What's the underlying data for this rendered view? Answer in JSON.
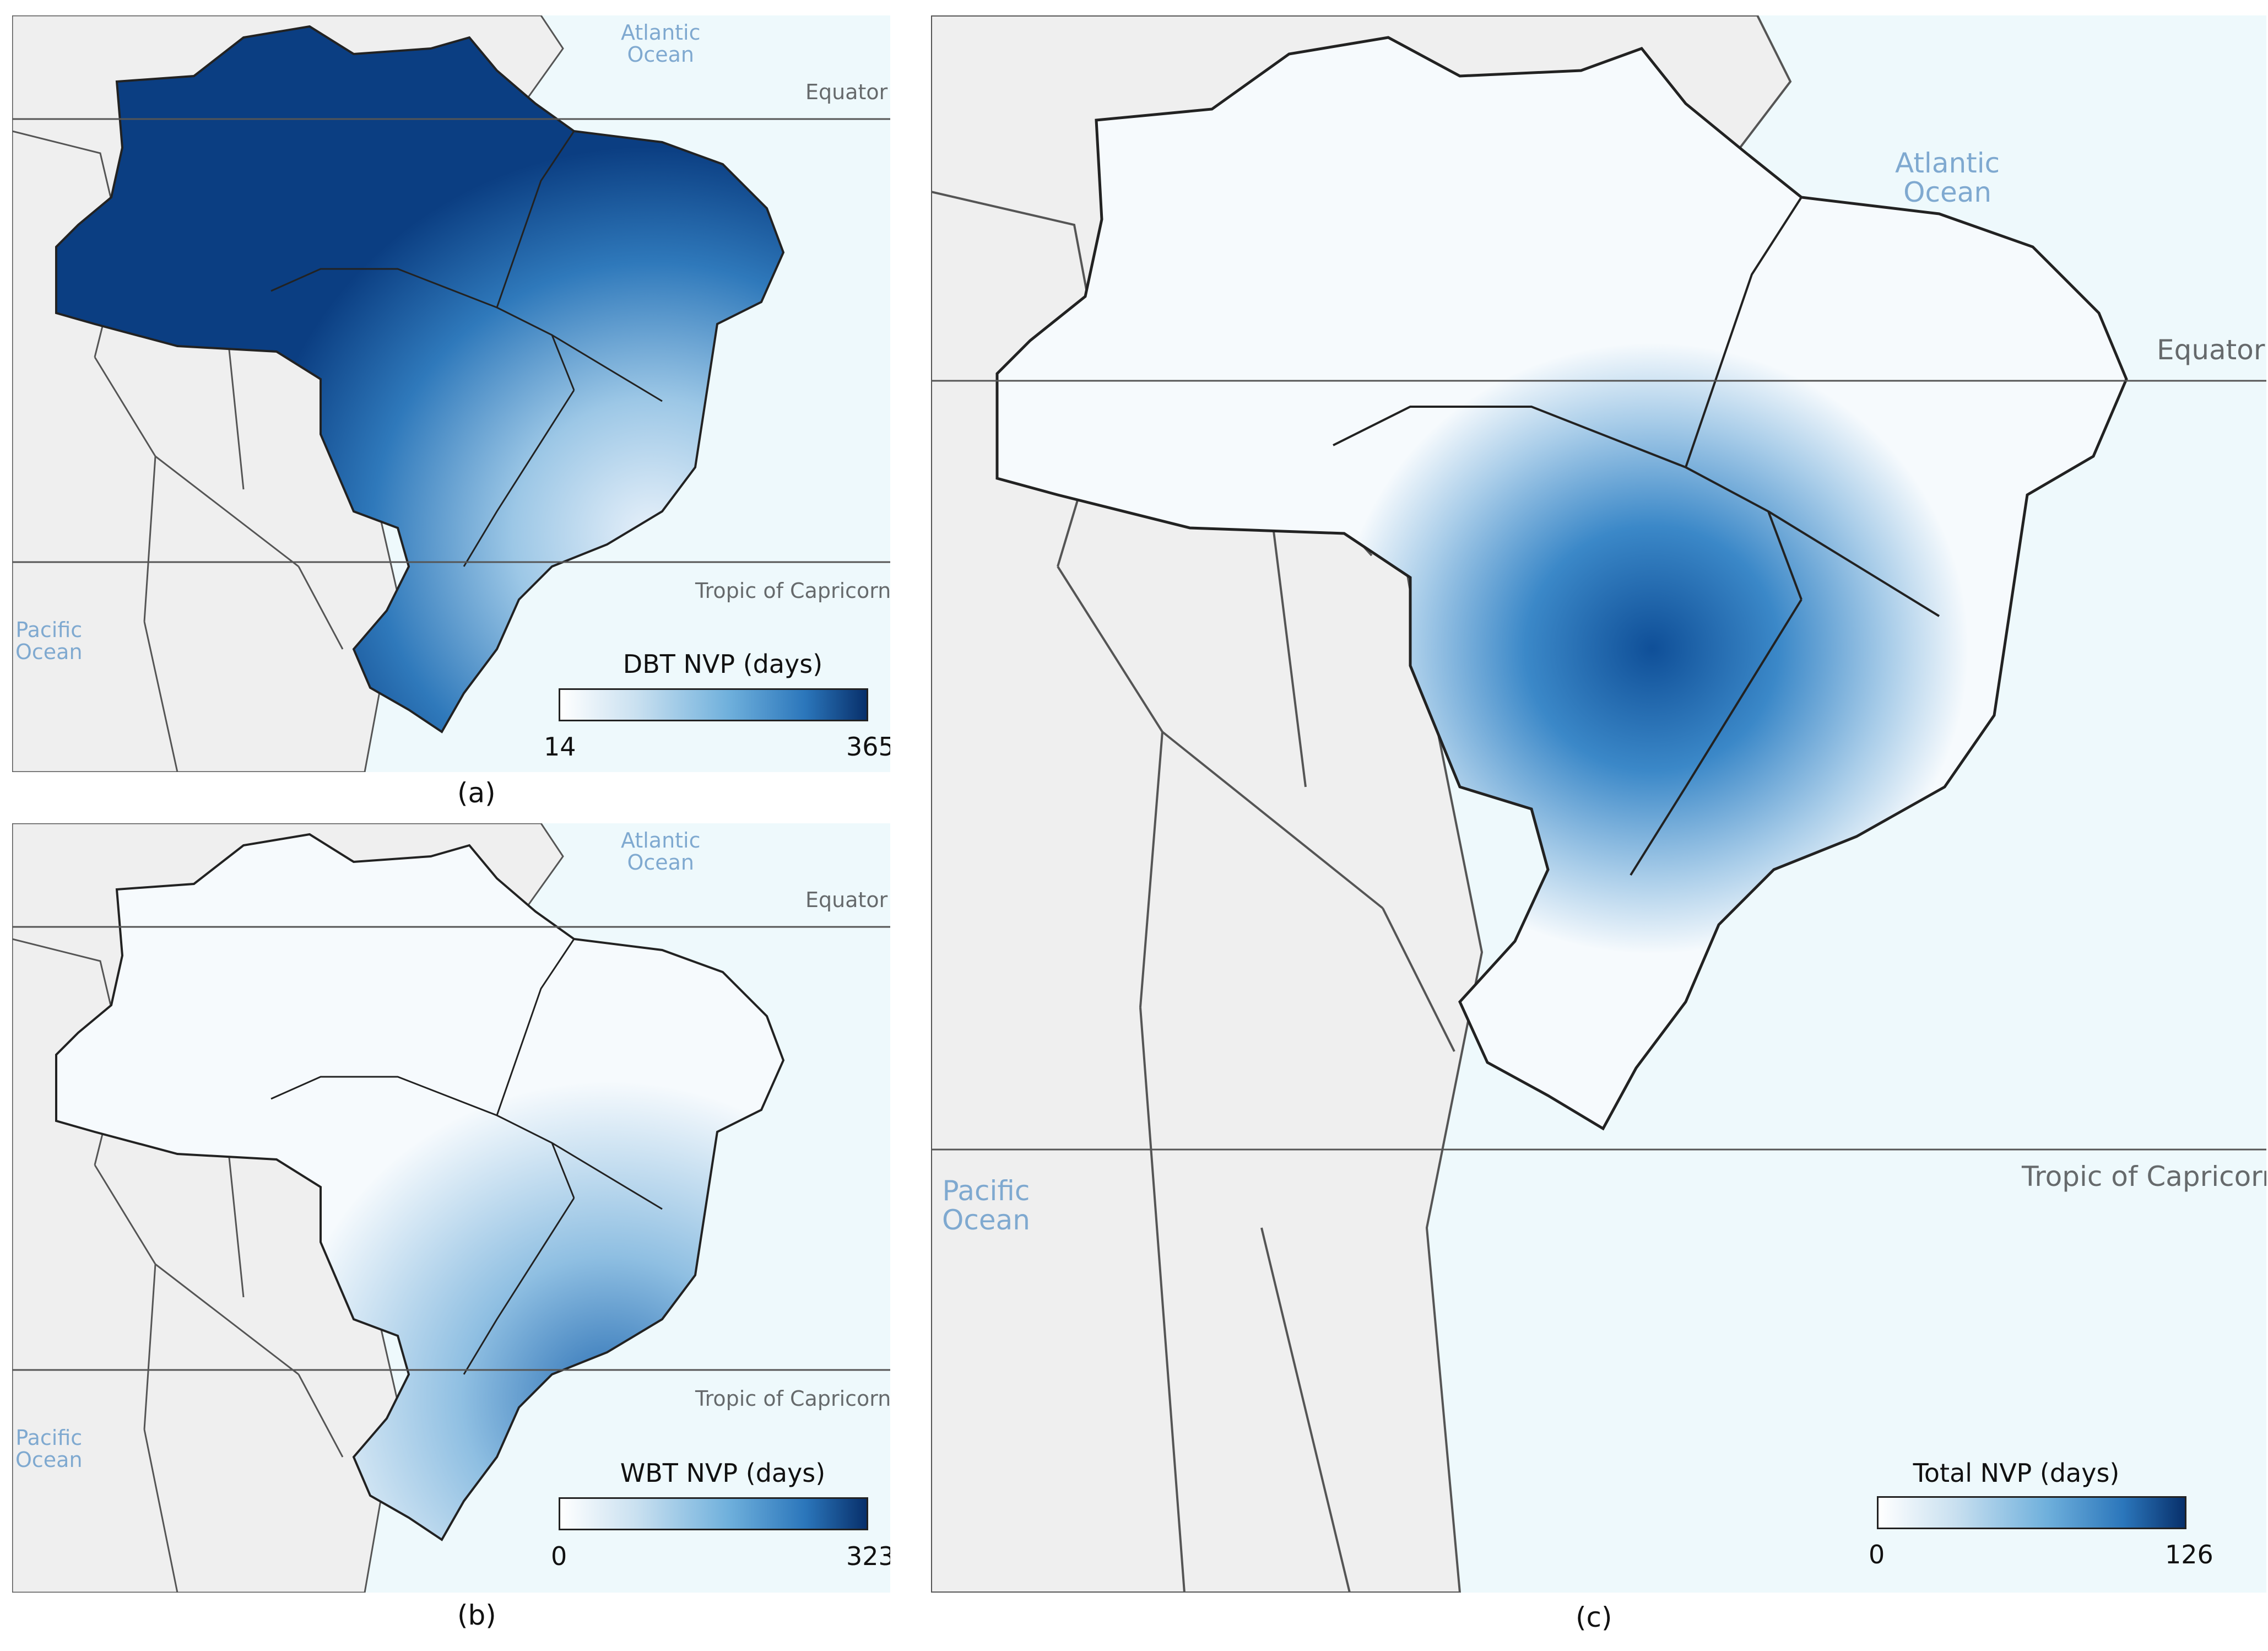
{
  "panels": {
    "a": {
      "caption": "(a)",
      "ocean_atlantic": "Atlantic\nOcean",
      "ocean_pacific": "Pacific\nOcean",
      "equator_label": "Equator",
      "tropic_label": "Tropic of Capricorn",
      "legend_title": "DBT NVP (days)",
      "legend_min": "14",
      "legend_max": "365"
    },
    "b": {
      "caption": "(b)",
      "ocean_atlantic": "Atlantic\nOcean",
      "ocean_pacific": "Pacific\nOcean",
      "equator_label": "Equator",
      "tropic_label": "Tropic of Capricorn",
      "legend_title": "WBT NVP (days)",
      "legend_min": "0",
      "legend_max": "323"
    },
    "c": {
      "caption": "(c)",
      "ocean_atlantic": "Atlantic\nOcean",
      "ocean_pacific": "Pacific\nOcean",
      "equator_label": "Equator",
      "tropic_label": "Tropic of Capricorn",
      "legend_title": "Total NVP (days)",
      "legend_min": "0",
      "legend_max": "126"
    }
  },
  "colors": {
    "ocean": "#eef9fc",
    "land": "#efefef",
    "border": "#333333",
    "scale_low": "#ffffff",
    "scale_high": "#08306b"
  }
}
